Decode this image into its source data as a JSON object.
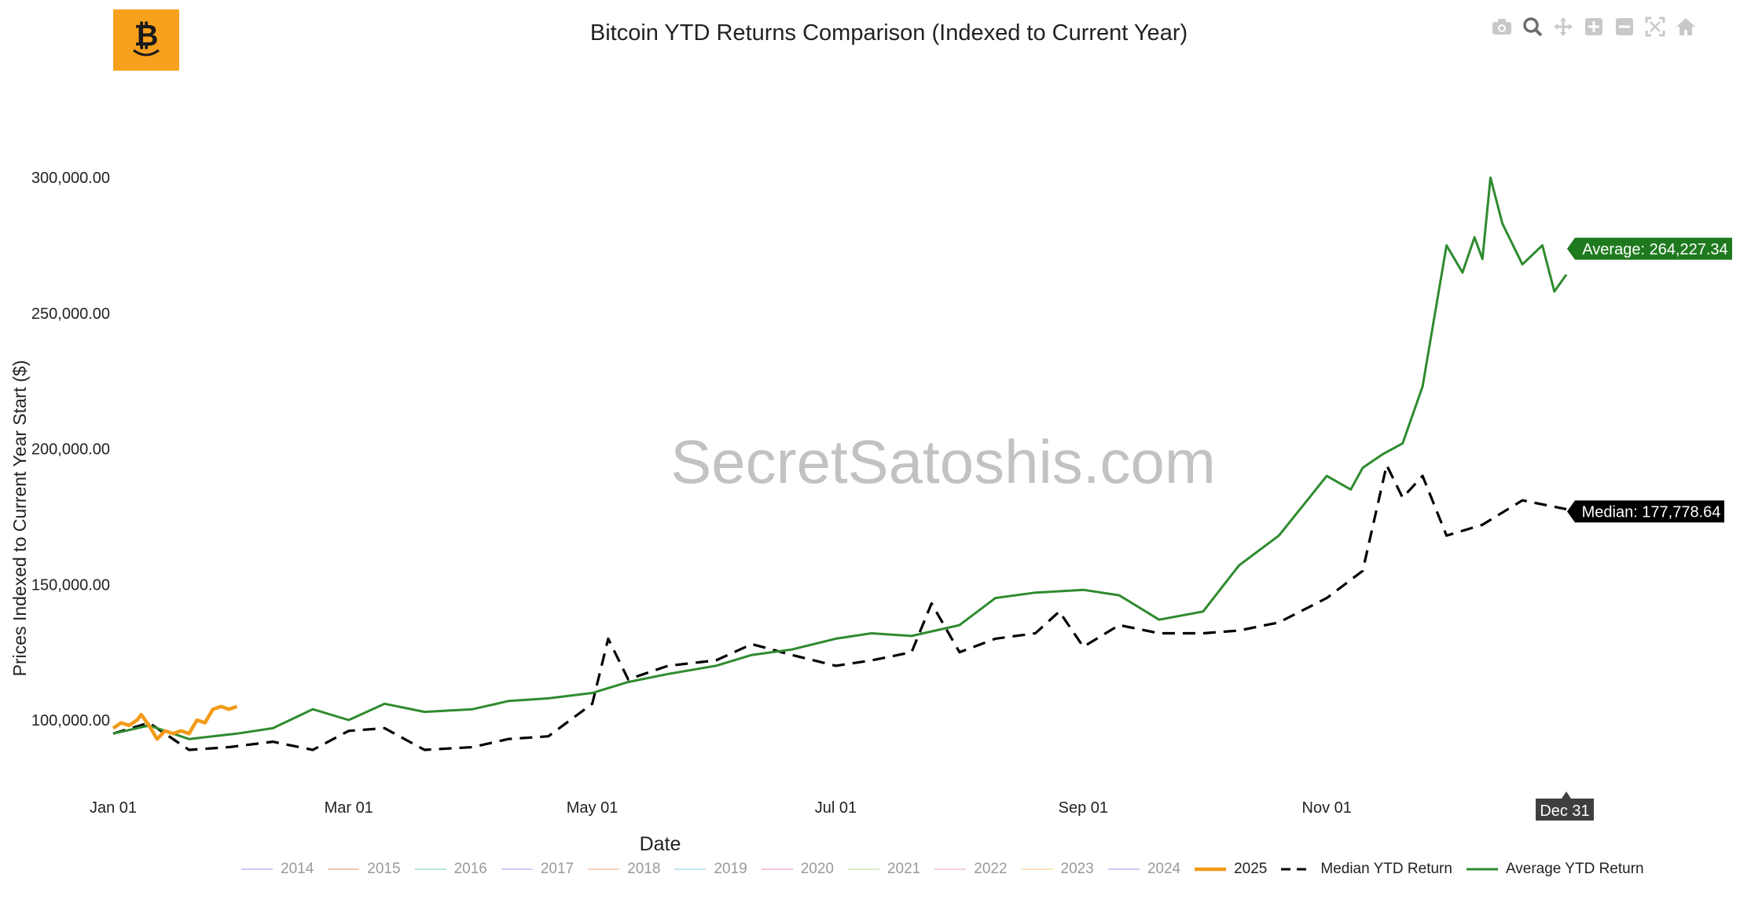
{
  "title": "Bitcoin YTD Returns Comparison (Indexed to Current Year)",
  "watermark": "SecretSatoshis.com",
  "modebar": [
    "camera-icon",
    "zoom-icon",
    "pan-icon",
    "zoom-in-icon",
    "zoom-out-icon",
    "autoscale-icon",
    "reset-axes-icon"
  ],
  "hover_x_label": "Dec 31",
  "colors": {
    "average": "#2e8b2e",
    "median": "#000000",
    "y2025": "#f29a17",
    "logo": "#f7a01e"
  },
  "chart_data": {
    "type": "line",
    "xlabel": "Date",
    "ylabel": "Prices Indexed to Current Year Start ($)",
    "x_ticks": [
      "Jan 01",
      "Mar 01",
      "May 01",
      "Jul 01",
      "Sep 01",
      "Nov 01"
    ],
    "y_ticks": [
      "100,000.00",
      "150,000.00",
      "200,000.00",
      "250,000.00",
      "300,000.00"
    ],
    "ylim": [
      82000,
      322000
    ],
    "xlim": [
      "Jan 01",
      "Dec 31"
    ],
    "legend_position": "bottom",
    "grid": false,
    "series": [
      {
        "name": "2014",
        "visible": false
      },
      {
        "name": "2015",
        "visible": false
      },
      {
        "name": "2016",
        "visible": false
      },
      {
        "name": "2017",
        "visible": false
      },
      {
        "name": "2018",
        "visible": false
      },
      {
        "name": "2019",
        "visible": false
      },
      {
        "name": "2020",
        "visible": false
      },
      {
        "name": "2021",
        "visible": false
      },
      {
        "name": "2022",
        "visible": false
      },
      {
        "name": "2023",
        "visible": false
      },
      {
        "name": "2024",
        "visible": false
      },
      {
        "name": "2025",
        "visible": true,
        "style": "solid",
        "x": [
          "Jan 01",
          "Jan 03",
          "Jan 05",
          "Jan 07",
          "Jan 08",
          "Jan 10",
          "Jan 12",
          "Jan 14",
          "Jan 16",
          "Jan 18",
          "Jan 20",
          "Jan 22",
          "Jan 24",
          "Jan 26",
          "Jan 28",
          "Jan 30",
          "Feb 01"
        ],
        "y": [
          97000,
          99000,
          98000,
          100000,
          102000,
          98000,
          93000,
          96000,
          95000,
          96000,
          95000,
          100000,
          99000,
          104000,
          105000,
          104000,
          105000
        ]
      },
      {
        "name": "Median YTD Return",
        "visible": true,
        "style": "dash",
        "x": [
          "Jan 01",
          "Jan 10",
          "Jan 20",
          "Jan 30",
          "Feb 10",
          "Feb 20",
          "Mar 01",
          "Mar 10",
          "Mar 20",
          "Apr 01",
          "Apr 10",
          "Apr 20",
          "May 01",
          "May 05",
          "May 10",
          "May 20",
          "Jun 01",
          "Jun 10",
          "Jun 20",
          "Jul 01",
          "Jul 10",
          "Jul 20",
          "Jul 25",
          "Aug 01",
          "Aug 10",
          "Aug 20",
          "Aug 26",
          "Sep 01",
          "Sep 10",
          "Sep 20",
          "Oct 01",
          "Oct 10",
          "Oct 20",
          "Nov 01",
          "Nov 10",
          "Nov 16",
          "Nov 20",
          "Nov 25",
          "Dec 01",
          "Dec 10",
          "Dec 20",
          "Dec 31"
        ],
        "y": [
          95000,
          99000,
          89000,
          90000,
          92000,
          89000,
          96000,
          97000,
          89000,
          90000,
          93000,
          94000,
          106000,
          130000,
          115000,
          120000,
          122000,
          128000,
          124000,
          120000,
          122000,
          125000,
          143000,
          125000,
          130000,
          132000,
          140000,
          127000,
          135000,
          132000,
          132000,
          133000,
          136000,
          145000,
          155000,
          194000,
          182000,
          190000,
          168000,
          172000,
          181000,
          177779
        ]
      },
      {
        "name": "Average YTD Return",
        "visible": true,
        "style": "solid",
        "x": [
          "Jan 01",
          "Jan 10",
          "Jan 20",
          "Feb 01",
          "Feb 10",
          "Feb 20",
          "Mar 01",
          "Mar 10",
          "Mar 20",
          "Apr 01",
          "Apr 10",
          "Apr 20",
          "May 01",
          "May 10",
          "May 20",
          "Jun 01",
          "Jun 10",
          "Jun 20",
          "Jul 01",
          "Jul 10",
          "Jul 20",
          "Aug 01",
          "Aug 10",
          "Aug 20",
          "Sep 01",
          "Sep 10",
          "Sep 20",
          "Oct 01",
          "Oct 10",
          "Oct 20",
          "Nov 01",
          "Nov 07",
          "Nov 10",
          "Nov 15",
          "Nov 20",
          "Nov 25",
          "Dec 01",
          "Dec 05",
          "Dec 08",
          "Dec 10",
          "Dec 12",
          "Dec 15",
          "Dec 20",
          "Dec 25",
          "Dec 28",
          "Dec 31"
        ],
        "y": [
          95000,
          98000,
          93000,
          95000,
          97000,
          104000,
          100000,
          106000,
          103000,
          104000,
          107000,
          108000,
          110000,
          114000,
          117000,
          120000,
          124000,
          126000,
          130000,
          132000,
          131000,
          135000,
          145000,
          147000,
          148000,
          146000,
          137000,
          140000,
          157000,
          168000,
          190000,
          185000,
          193000,
          198000,
          202000,
          223000,
          275000,
          265000,
          278000,
          270000,
          300000,
          283000,
          268000,
          275000,
          258000,
          264227
        ]
      }
    ],
    "annotations": [
      {
        "text": "Average: 264,227.34",
        "series": "Average YTD Return"
      },
      {
        "text": "Median: 177,778.64",
        "series": "Median YTD Return"
      }
    ]
  }
}
